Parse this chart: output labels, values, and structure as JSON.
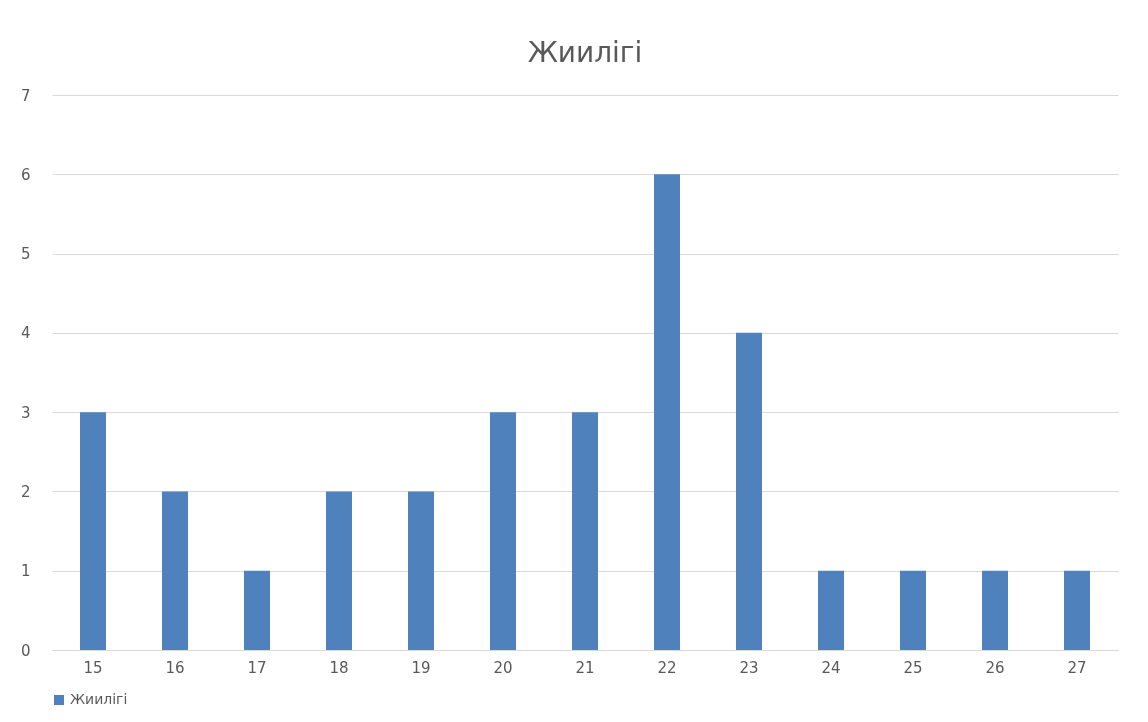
{
  "chart_data": {
    "type": "bar",
    "title": "Жиилігі",
    "categories": [
      "15",
      "16",
      "17",
      "18",
      "19",
      "20",
      "21",
      "22",
      "23",
      "24",
      "25",
      "26",
      "27"
    ],
    "series": [
      {
        "name": "Жиилігі",
        "color": "#4f81bd",
        "values": [
          3,
          2,
          1,
          2,
          2,
          3,
          3,
          6,
          4,
          1,
          1,
          1,
          1
        ]
      }
    ],
    "ylim": [
      0,
      7
    ],
    "yticks": [
      0,
      1,
      2,
      3,
      4,
      5,
      6,
      7
    ],
    "grid": "y",
    "legend": "bottom"
  }
}
